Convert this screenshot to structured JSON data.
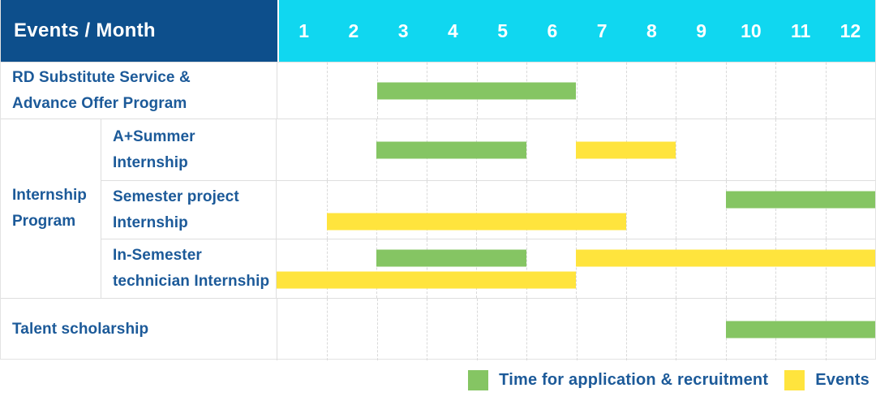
{
  "header": {
    "label": "Events / Month",
    "months": [
      "1",
      "2",
      "3",
      "4",
      "5",
      "6",
      "7",
      "8",
      "9",
      "10",
      "11",
      "12"
    ]
  },
  "groups": [
    {
      "label": "Internship\nProgram"
    }
  ],
  "row_labels": {
    "rd_substitute": "RD Substitute Service &\nAdvance Offer Program",
    "a_plus_summer": "A+Summer\nInternship",
    "semester_project": "Semester project\nInternship",
    "in_semester": "In-Semester\ntechnician Internship",
    "talent_scholarship": "Talent scholarship"
  },
  "legend": [
    {
      "key": "application",
      "label": "Time for application & recruitment",
      "color": "#85c563"
    },
    {
      "key": "event",
      "label": "Events",
      "color": "#ffe43d"
    }
  ],
  "colors": {
    "header_blue": "#0d4f8c",
    "cyan": "#10d7f0",
    "text_blue": "#1c5a99",
    "application_green": "#85c563",
    "event_yellow": "#ffe43d"
  },
  "chart_data": {
    "type": "bar",
    "subtype": "gantt-schedule",
    "title": "",
    "xlabel": "Month",
    "ylabel": "Events",
    "x_ticks": [
      "1",
      "2",
      "3",
      "4",
      "5",
      "6",
      "7",
      "8",
      "9",
      "10",
      "11",
      "12"
    ],
    "x_range": [
      1,
      12
    ],
    "grid": true,
    "legend_position": "bottom-right",
    "series_types": {
      "application": "Time for application & recruitment (green)",
      "event": "Events (yellow)"
    },
    "rows": [
      {
        "label": "RD Substitute Service & Advance Offer Program",
        "group": null,
        "bars": [
          {
            "type": "application",
            "start_month": 3,
            "end_month": 6,
            "lane": "single"
          }
        ]
      },
      {
        "label": "A+Summer Internship",
        "group": "Internship Program",
        "bars": [
          {
            "type": "application",
            "start_month": 3,
            "end_month": 5,
            "lane": "single"
          },
          {
            "type": "event",
            "start_month": 7,
            "end_month": 8,
            "lane": "single"
          }
        ]
      },
      {
        "label": "Semester project Internship",
        "group": "Internship Program",
        "bars": [
          {
            "type": "application",
            "start_month": 10,
            "end_month": 12,
            "lane": "top"
          },
          {
            "type": "event",
            "start_month": 2,
            "end_month": 7,
            "lane": "bottom"
          }
        ]
      },
      {
        "label": "In-Semester technician Internship",
        "group": "Internship Program",
        "bars": [
          {
            "type": "application",
            "start_month": 3,
            "end_month": 5,
            "lane": "top"
          },
          {
            "type": "event",
            "start_month": 7,
            "end_month": 12,
            "lane": "top"
          },
          {
            "type": "event",
            "start_month": 1,
            "end_month": 6,
            "lane": "bottom"
          }
        ]
      },
      {
        "label": "Talent scholarship",
        "group": null,
        "bars": [
          {
            "type": "application",
            "start_month": 10,
            "end_month": 12,
            "lane": "single"
          }
        ]
      }
    ]
  }
}
